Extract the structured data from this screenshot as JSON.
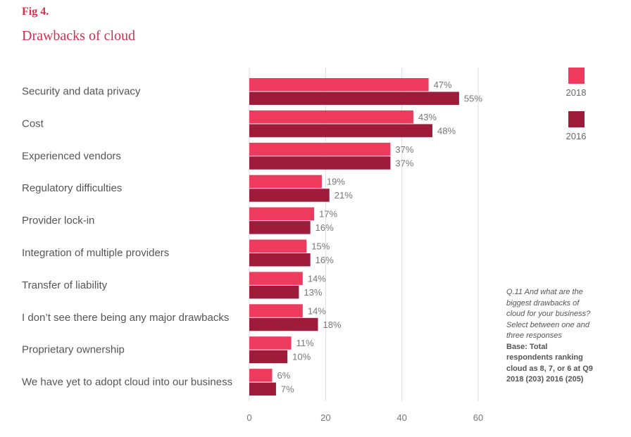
{
  "header": {
    "fig_label": "Fig 4.",
    "title": "Drawbacks of cloud"
  },
  "colors": {
    "series_2018": "#ee3a5c",
    "series_2016": "#9e1b3a",
    "grid": "#dddddd",
    "text": "#555555",
    "title": "#d6304f"
  },
  "chart_data": {
    "type": "bar",
    "orientation": "horizontal",
    "title": "Drawbacks of cloud",
    "xlabel": "",
    "ylabel": "",
    "xlim": [
      0,
      60
    ],
    "xticks": [
      0,
      20,
      40,
      60
    ],
    "grid": true,
    "legend_position": "right",
    "value_suffix": "%",
    "categories": [
      "Security and data privacy",
      "Cost",
      "Experienced vendors",
      "Regulatory difficulties",
      "Provider lock-in",
      "Integration of multiple providers",
      "Transfer of liability",
      "I don’t see there being any major drawbacks",
      "Proprietary ownership",
      "We have yet to adopt cloud into our business"
    ],
    "series": [
      {
        "name": "2018",
        "color": "#ee3a5c",
        "values": [
          47,
          43,
          37,
          19,
          17,
          15,
          14,
          14,
          11,
          6
        ]
      },
      {
        "name": "2016",
        "color": "#9e1b3a",
        "values": [
          55,
          48,
          37,
          21,
          16,
          16,
          13,
          18,
          10,
          7
        ]
      }
    ]
  },
  "note": {
    "question": "Q.11 And what are the biggest drawbacks of cloud for your business? Select between one and three responses",
    "base": "Base: Total respondents ranking cloud as 8, 7, or 6 at Q9 2018 (203) 2016 (205)"
  }
}
